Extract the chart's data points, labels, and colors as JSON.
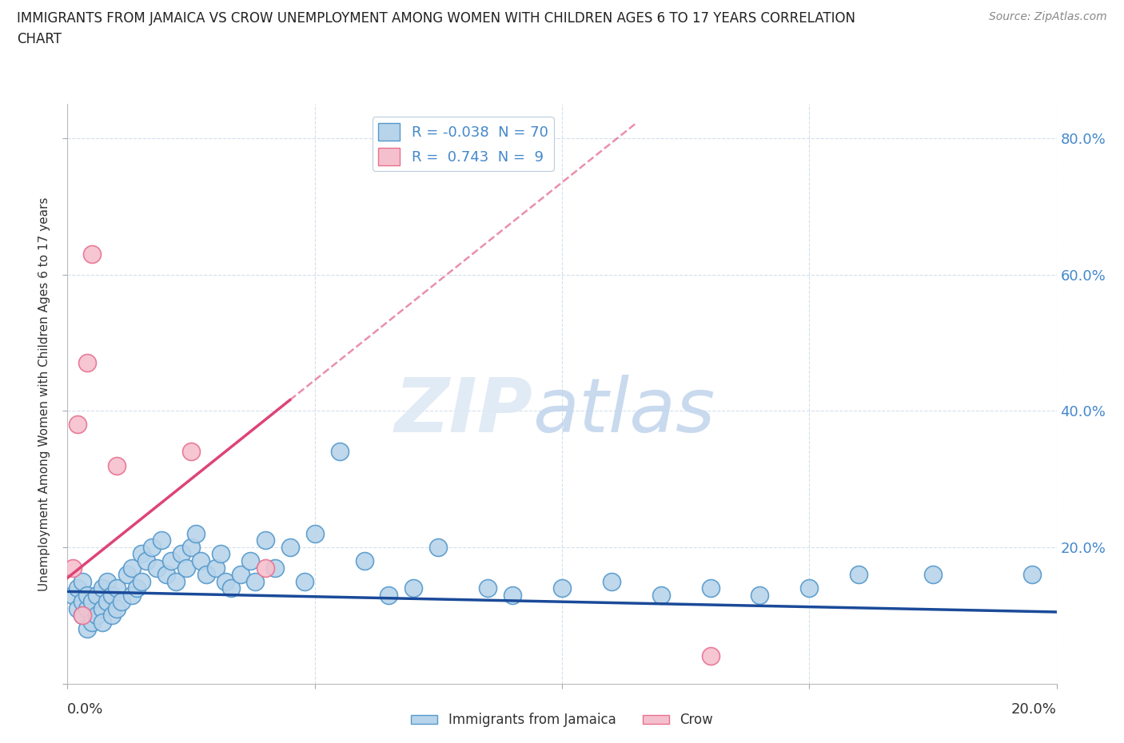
{
  "title": "IMMIGRANTS FROM JAMAICA VS CROW UNEMPLOYMENT AMONG WOMEN WITH CHILDREN AGES 6 TO 17 YEARS CORRELATION\nCHART",
  "source": "Source: ZipAtlas.com",
  "ylabel": "Unemployment Among Women with Children Ages 6 to 17 years",
  "xlim": [
    0.0,
    0.2
  ],
  "ylim": [
    0.0,
    0.85
  ],
  "yticks": [
    0.0,
    0.2,
    0.4,
    0.6,
    0.8
  ],
  "xticks": [
    0.0,
    0.05,
    0.1,
    0.15,
    0.2
  ],
  "blue_face_color": "#b8d4ea",
  "blue_edge_color": "#5599cc",
  "pink_face_color": "#f5c0cd",
  "pink_edge_color": "#e87090",
  "trend_blue_color": "#1a4a99",
  "trend_pink_color": "#dd4477",
  "right_axis_color": "#4488cc",
  "legend_label1": "R = -0.038  N = 70",
  "legend_label2": "R =  0.743  N =  9",
  "legend_bottom1": "Immigrants from Jamaica",
  "legend_bottom2": "Crow",
  "watermark_zip": "ZIP",
  "watermark_atlas": "atlas",
  "blue_x": [
    0.001,
    0.002,
    0.002,
    0.003,
    0.003,
    0.003,
    0.004,
    0.004,
    0.004,
    0.005,
    0.005,
    0.006,
    0.006,
    0.007,
    0.007,
    0.007,
    0.008,
    0.008,
    0.009,
    0.009,
    0.01,
    0.01,
    0.011,
    0.012,
    0.013,
    0.013,
    0.014,
    0.015,
    0.015,
    0.016,
    0.017,
    0.018,
    0.019,
    0.02,
    0.021,
    0.022,
    0.023,
    0.024,
    0.025,
    0.026,
    0.027,
    0.028,
    0.03,
    0.031,
    0.032,
    0.033,
    0.035,
    0.037,
    0.038,
    0.04,
    0.042,
    0.045,
    0.048,
    0.05,
    0.055,
    0.06,
    0.065,
    0.07,
    0.075,
    0.085,
    0.09,
    0.1,
    0.11,
    0.12,
    0.13,
    0.14,
    0.15,
    0.16,
    0.175,
    0.195
  ],
  "blue_y": [
    0.13,
    0.11,
    0.14,
    0.1,
    0.12,
    0.15,
    0.08,
    0.11,
    0.13,
    0.09,
    0.12,
    0.1,
    0.13,
    0.11,
    0.14,
    0.09,
    0.12,
    0.15,
    0.1,
    0.13,
    0.11,
    0.14,
    0.12,
    0.16,
    0.13,
    0.17,
    0.14,
    0.19,
    0.15,
    0.18,
    0.2,
    0.17,
    0.21,
    0.16,
    0.18,
    0.15,
    0.19,
    0.17,
    0.2,
    0.22,
    0.18,
    0.16,
    0.17,
    0.19,
    0.15,
    0.14,
    0.16,
    0.18,
    0.15,
    0.21,
    0.17,
    0.2,
    0.15,
    0.22,
    0.34,
    0.18,
    0.13,
    0.14,
    0.2,
    0.14,
    0.13,
    0.14,
    0.15,
    0.13,
    0.14,
    0.13,
    0.14,
    0.16,
    0.16,
    0.16
  ],
  "pink_x": [
    0.001,
    0.002,
    0.003,
    0.004,
    0.005,
    0.01,
    0.025,
    0.04,
    0.13
  ],
  "pink_y": [
    0.17,
    0.38,
    0.1,
    0.47,
    0.63,
    0.32,
    0.34,
    0.17,
    0.04
  ],
  "pink_trend_x_start": 0.0,
  "pink_trend_x_solid_end": 0.045,
  "pink_trend_x_dash_end": 0.115,
  "pink_trend_slope": 5.8,
  "pink_trend_intercept": 0.155,
  "blue_trend_x_start": 0.0,
  "blue_trend_x_end": 0.2,
  "blue_trend_slope": -0.15,
  "blue_trend_intercept": 0.135
}
